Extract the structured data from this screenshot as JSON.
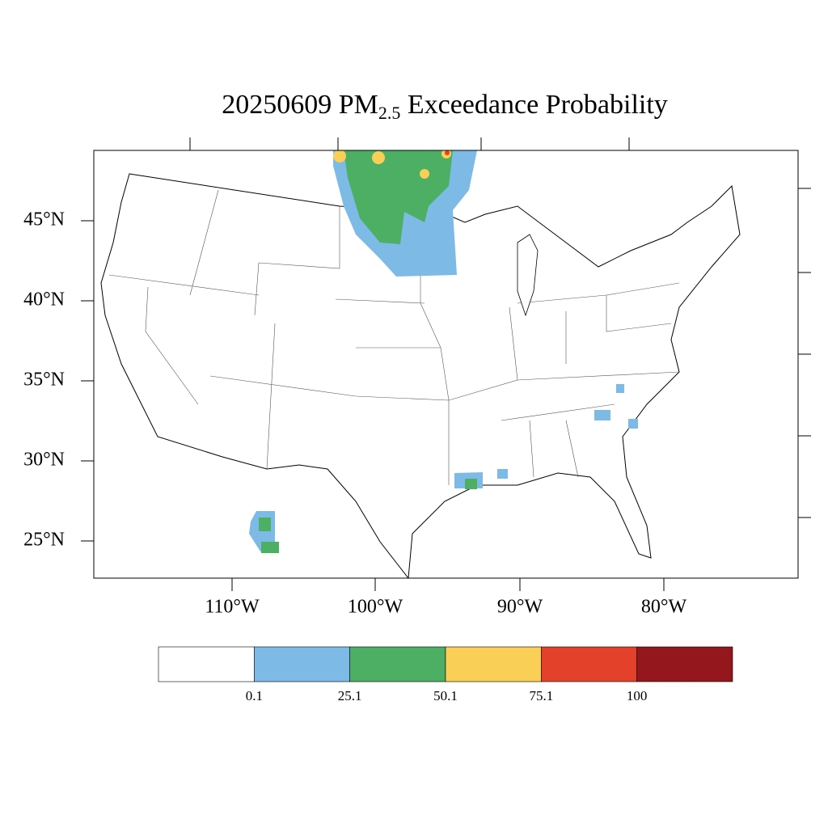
{
  "title": {
    "date": "20250609",
    "species": "PM",
    "subscript": "2.5",
    "rest": "Exceedance Probability"
  },
  "lat_labels": [
    "45°N",
    "40°N",
    "35°N",
    "30°N",
    "25°N"
  ],
  "lon_labels": [
    "110°W",
    "100°W",
    "90°W",
    "80°W"
  ],
  "colorbar": {
    "colors": [
      "#ffffff",
      "#7dbbe6",
      "#4caf64",
      "#f9cf55",
      "#e34129",
      "#93171c"
    ],
    "levels": [
      0.1,
      25.1,
      50.1,
      75.1,
      100
    ]
  }
}
